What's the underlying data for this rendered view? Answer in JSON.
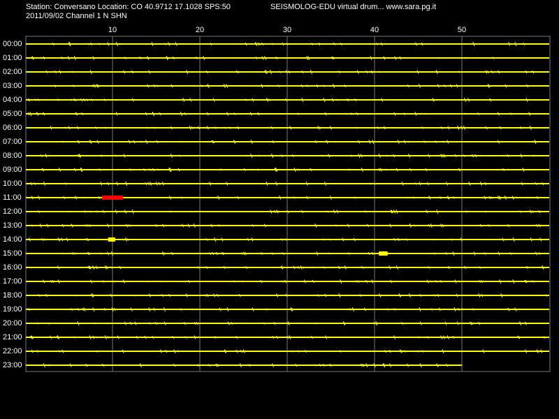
{
  "chart_data": {
    "type": "helicorder",
    "title": "Station: Conversano Location: CO 40.9712 17.1028 SPS:50",
    "subtitle": "2011/09/02  Channel 1 N SHN",
    "source": "SEISMOLOG-EDU virtual drum... www.sara.pg.it",
    "xlim": [
      0,
      60
    ],
    "xticks": [
      10,
      20,
      30,
      40,
      50
    ],
    "categories": [
      "00:00",
      "01:00",
      "02:00",
      "03:00",
      "04:00",
      "05:00",
      "06:00",
      "07:00",
      "08:00",
      "09:00",
      "10:00",
      "11:00",
      "12:00",
      "13:00",
      "14:00",
      "15:00",
      "16:00",
      "17:00",
      "18:00",
      "19:00",
      "20:00",
      "21:00",
      "22:00",
      "23:00"
    ],
    "trace_color": "#ffff00",
    "last_trace_end": 50,
    "events": [
      {
        "row": 11,
        "start": 8.8,
        "end": 11.2,
        "color": "#ff0000"
      },
      {
        "row": 14,
        "start": 9.5,
        "end": 10.3,
        "color": "#ffff00"
      },
      {
        "row": 15,
        "start": 40.5,
        "end": 41.5,
        "color": "#ffff00"
      }
    ]
  }
}
